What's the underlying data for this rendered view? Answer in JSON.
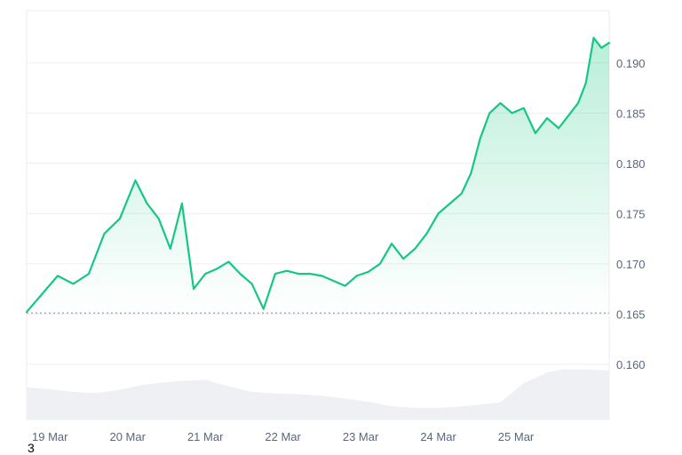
{
  "chart_data": {
    "type": "area",
    "y_ticks": [
      "0.160",
      "0.165",
      "0.170",
      "0.175",
      "0.180",
      "0.185",
      "0.190"
    ],
    "y_tick_values": [
      0.16,
      0.165,
      0.17,
      0.175,
      0.18,
      0.185,
      0.19
    ],
    "x_ticks": [
      "19 Mar",
      "20 Mar",
      "21 Mar",
      "22 Mar",
      "23 Mar",
      "24 Mar",
      "25 Mar"
    ],
    "ylim": [
      0.1545,
      0.1952
    ],
    "reference_value": 0.1651,
    "grid": true,
    "price": {
      "x": [
        0,
        0.2,
        0.4,
        0.6,
        0.8,
        1.0,
        1.2,
        1.4,
        1.55,
        1.7,
        1.85,
        2.0,
        2.15,
        2.3,
        2.45,
        2.6,
        2.75,
        2.9,
        3.05,
        3.2,
        3.35,
        3.5,
        3.65,
        3.8,
        3.95,
        4.1,
        4.25,
        4.4,
        4.55,
        4.7,
        4.85,
        5.0,
        5.15,
        5.3,
        5.45,
        5.6,
        5.72,
        5.84,
        5.96,
        6.1,
        6.25,
        6.4,
        6.55,
        6.7,
        6.85,
        7.0,
        7.1,
        7.2,
        7.3,
        7.4,
        7.5
      ],
      "values": [
        0.1652,
        0.167,
        0.1688,
        0.168,
        0.169,
        0.173,
        0.1745,
        0.1783,
        0.176,
        0.1745,
        0.1715,
        0.176,
        0.1675,
        0.169,
        0.1695,
        0.1702,
        0.169,
        0.168,
        0.1655,
        0.169,
        0.1693,
        0.169,
        0.169,
        0.1688,
        0.1683,
        0.1678,
        0.1688,
        0.1692,
        0.17,
        0.172,
        0.1705,
        0.1715,
        0.173,
        0.175,
        0.176,
        0.177,
        0.179,
        0.1825,
        0.185,
        0.186,
        0.185,
        0.1855,
        0.183,
        0.1845,
        0.1835,
        0.185,
        0.186,
        0.188,
        0.1925,
        0.1915,
        0.192
      ]
    },
    "volume": {
      "x": [
        0,
        0.3,
        0.6,
        0.9,
        1.2,
        1.5,
        1.8,
        2.0,
        2.3,
        2.6,
        2.9,
        3.2,
        3.5,
        3.8,
        4.1,
        4.4,
        4.7,
        5.0,
        5.3,
        5.5,
        5.7,
        5.9,
        6.1,
        6.4,
        6.7,
        6.9,
        7.2,
        7.5
      ],
      "level": [
        0.58,
        0.55,
        0.5,
        0.48,
        0.54,
        0.63,
        0.68,
        0.7,
        0.72,
        0.6,
        0.5,
        0.47,
        0.46,
        0.43,
        0.38,
        0.32,
        0.24,
        0.21,
        0.21,
        0.23,
        0.25,
        0.28,
        0.31,
        0.66,
        0.85,
        0.91,
        0.91,
        0.89
      ]
    },
    "colors": {
      "line": "#16c784",
      "area_top": "#16c784",
      "volume_fill": "#eef0f4",
      "grid": "#eceef2",
      "reference": "#8a94a6",
      "tick": "#58667e"
    }
  },
  "corner_label": "3"
}
